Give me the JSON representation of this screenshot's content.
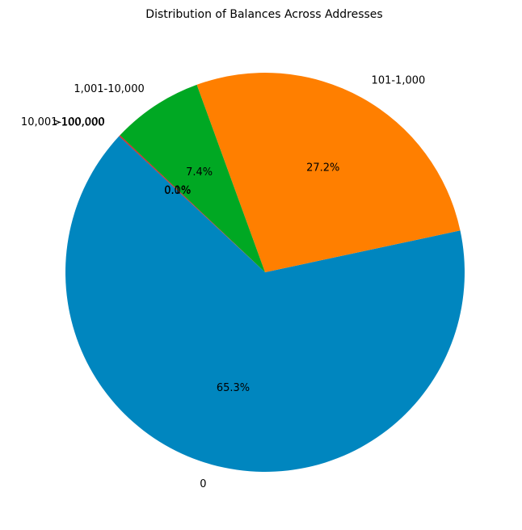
{
  "chart_data": {
    "type": "pie",
    "title": "Distribution of Balances Across Addresses",
    "slices": [
      {
        "label": "0",
        "value": 65.3,
        "pct_label": "65.3%",
        "color": "#0086BF"
      },
      {
        "label": "101-1,000",
        "value": 27.2,
        "pct_label": "27.2%",
        "color": "#FF7F00"
      },
      {
        "label": "1,001-10,000",
        "value": 7.4,
        "pct_label": "7.4%",
        "color": "#00A823"
      },
      {
        "label": "10,001-100,000",
        "value": 0.1,
        "pct_label": "0.1%",
        "color": "#D62728"
      },
      {
        "label": ">100,000",
        "value": 0.0,
        "pct_label": "0.0%",
        "color": "#8C564B"
      }
    ],
    "start_angle_deg": 137,
    "direction": "counterclockwise",
    "legend": "none"
  }
}
